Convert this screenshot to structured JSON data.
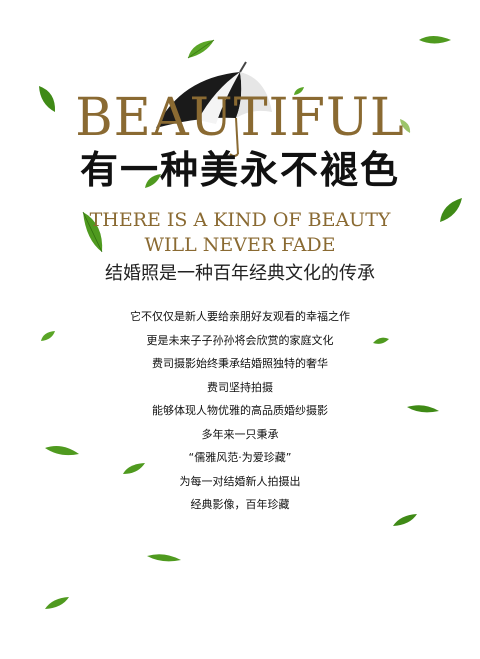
{
  "title_en": "BEAUTIFUL",
  "title_cn": "有一种美永不褪色",
  "subtitle_en_line1": "THERE IS A KIND OF BEAUTY",
  "subtitle_en_line2": "WILL NEVER FADE",
  "subtitle_cn": "结婚照是一种百年经典文化的传承",
  "body_lines": [
    "它不仅仅是新人要给亲朋好友观看的幸福之作",
    "更是未来子子孙孙将会欣赏的家庭文化",
    "费司摄影始终秉承结婚照独特的奢华",
    "费司坚持拍摄",
    "能够体现人物优雅的高品质婚纱摄影",
    "多年来一只秉承",
    "“儒雅风范·为爱珍藏”",
    "为每一对结婚新人拍摄出",
    "经典影像，百年珍藏"
  ],
  "colors": {
    "gold": "#8a6a32",
    "dark": "#111111",
    "leaf_green": "#4f9a1f"
  },
  "icons": {
    "umbrella": "umbrella-icon",
    "leaf": "leaf-icon"
  }
}
